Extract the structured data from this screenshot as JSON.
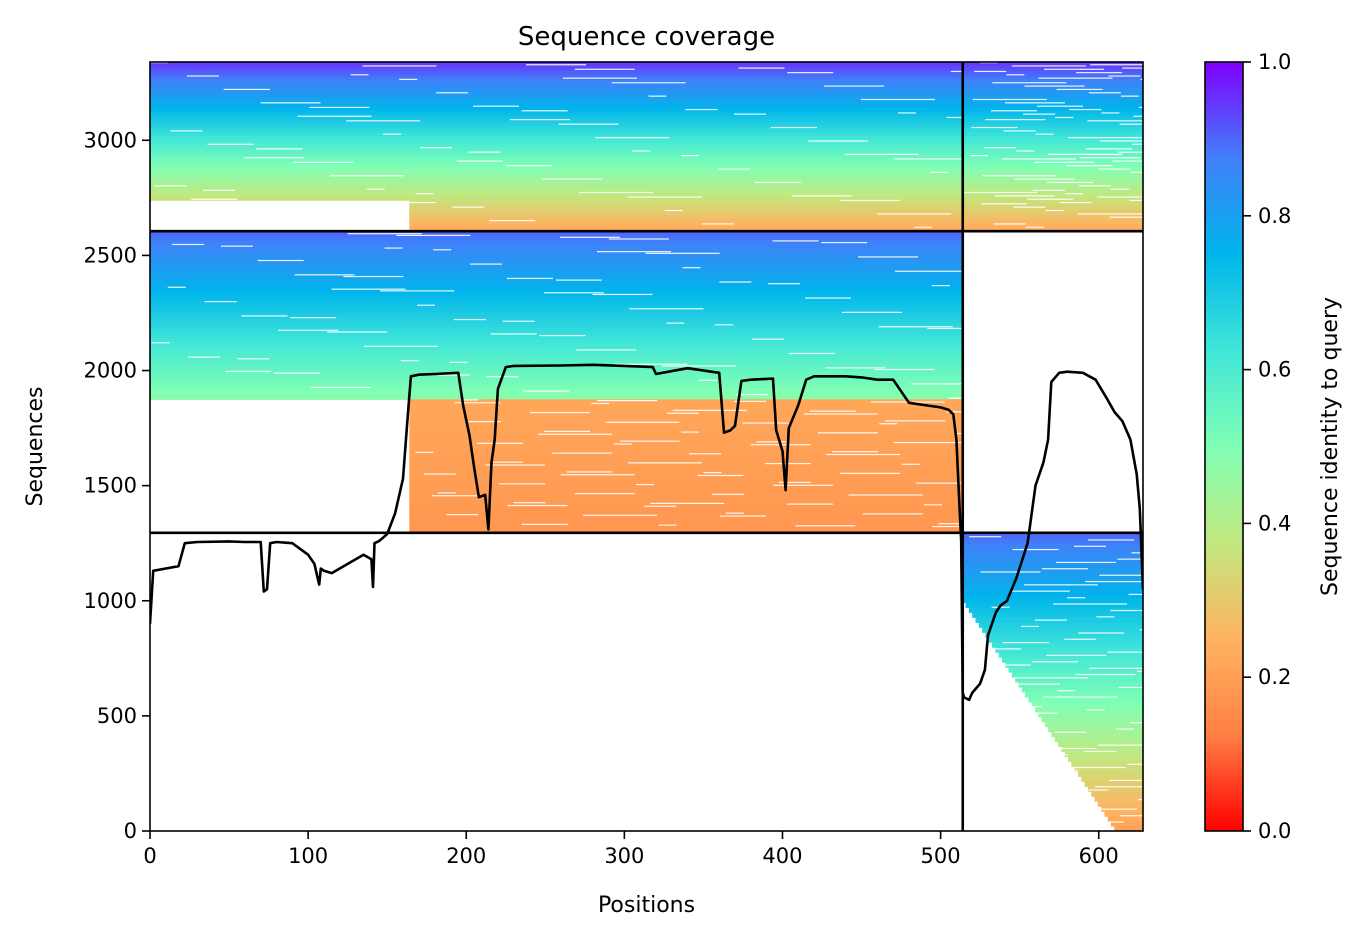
{
  "chart_data": {
    "type": "heatmap",
    "title": "Sequence coverage",
    "xlabel": "Positions",
    "ylabel": "Sequences",
    "colorbar_label": "Sequence identity to query",
    "xlim": [
      0,
      628
    ],
    "ylim": [
      0,
      3340
    ],
    "x_ticks": [
      0,
      100,
      200,
      300,
      400,
      500,
      600
    ],
    "y_ticks": [
      0,
      500,
      1000,
      1500,
      2000,
      2500,
      3000
    ],
    "colorbar_ticks": [
      0.0,
      0.2,
      0.4,
      0.6,
      0.8,
      1.0
    ],
    "colorbar_tick_labels": [
      "0.0",
      "0.2",
      "0.4",
      "0.6",
      "0.8",
      "1.0"
    ],
    "colormap": "rainbow",
    "colormap_stops": [
      "#ff0000",
      "#ff8045",
      "#ffb360",
      "#c1e87f",
      "#80ffb4",
      "#40e6d8",
      "#00b5eb",
      "#4080f9",
      "#8000ff"
    ],
    "grid": false,
    "divider_lines": {
      "horizontal_y": [
        1295,
        2605
      ],
      "vertical_x": 514,
      "vertical_y_range": [
        0,
        3340
      ]
    },
    "coverage_blocks": [
      {
        "x_range": [
          0,
          514
        ],
        "y_range": [
          2605,
          3340
        ],
        "identity_bottom": 0.22,
        "identity_top": 0.95,
        "left_gap_x": 164,
        "left_gap_top_y": 2735
      },
      {
        "x_range": [
          514,
          628
        ],
        "y_range": [
          2605,
          3340
        ],
        "identity_bottom": 0.22,
        "identity_top": 0.95
      },
      {
        "x_range": [
          0,
          514
        ],
        "y_range": [
          1875,
          2605
        ],
        "identity_bottom": 0.48,
        "identity_top": 0.9
      },
      {
        "x_range": [
          164,
          514
        ],
        "y_range": [
          1295,
          1875
        ],
        "identity_bottom": 0.18,
        "identity_top": 0.22
      },
      {
        "x_range": [
          514,
          628
        ],
        "y_range": [
          0,
          1295
        ],
        "identity_bottom": 0.2,
        "identity_top": 0.9,
        "sparse_left_bottom": true
      }
    ],
    "coverage_line": {
      "x": [
        0,
        2,
        10,
        18,
        22,
        30,
        50,
        60,
        70,
        72,
        74,
        76,
        80,
        90,
        100,
        104,
        107,
        108,
        110,
        115,
        125,
        135,
        140,
        141,
        142,
        145,
        150,
        155,
        160,
        163,
        165,
        170,
        180,
        195,
        198,
        202,
        205,
        208,
        212,
        214,
        216,
        218,
        220,
        225,
        230,
        260,
        280,
        300,
        318,
        320,
        340,
        360,
        363,
        367,
        370,
        374,
        380,
        394,
        396,
        400,
        402,
        404,
        410,
        415,
        420,
        440,
        450,
        460,
        470,
        480,
        490,
        500,
        505,
        508,
        510,
        512,
        513,
        514,
        515,
        518,
        520,
        525,
        528,
        530,
        535,
        538,
        542,
        548,
        555,
        560,
        565,
        568,
        570,
        575,
        580,
        590,
        598,
        605,
        610,
        615,
        620,
        624,
        626,
        628
      ],
      "y": [
        900,
        1130,
        1140,
        1150,
        1250,
        1255,
        1258,
        1255,
        1255,
        1040,
        1050,
        1250,
        1255,
        1250,
        1200,
        1160,
        1070,
        1140,
        1130,
        1120,
        1160,
        1200,
        1180,
        1060,
        1250,
        1260,
        1290,
        1380,
        1530,
        1800,
        1975,
        1982,
        1985,
        1990,
        1850,
        1720,
        1580,
        1450,
        1460,
        1310,
        1600,
        1700,
        1920,
        2015,
        2020,
        2022,
        2025,
        2020,
        2015,
        1985,
        2010,
        1990,
        1730,
        1740,
        1760,
        1955,
        1960,
        1965,
        1740,
        1650,
        1480,
        1750,
        1850,
        1960,
        1975,
        1975,
        1970,
        1960,
        1960,
        1860,
        1850,
        1840,
        1830,
        1810,
        1700,
        1400,
        1260,
        600,
        580,
        570,
        600,
        640,
        700,
        850,
        950,
        980,
        1000,
        1100,
        1250,
        1500,
        1600,
        1700,
        1950,
        1990,
        1995,
        1990,
        1960,
        1880,
        1820,
        1780,
        1700,
        1550,
        1400,
        1050
      ]
    }
  }
}
